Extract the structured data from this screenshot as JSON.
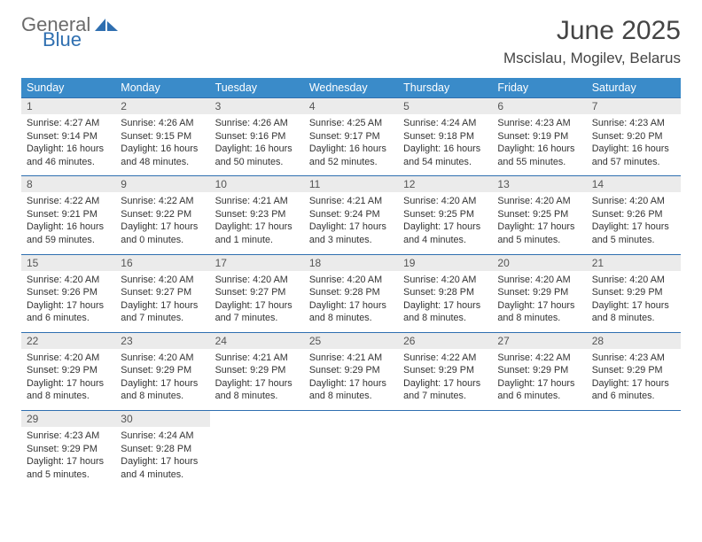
{
  "brand": {
    "word1": "General",
    "word2": "Blue",
    "color_gray": "#6b6b6b",
    "color_blue": "#2f6fb0"
  },
  "title": "June 2025",
  "location": "Mscislau, Mogilev, Belarus",
  "colors": {
    "header_bg": "#3a8bc9",
    "header_text": "#ffffff",
    "row_divider": "#2f6fb0",
    "daynum_bg": "#ebebeb",
    "body_text": "#333333"
  },
  "day_headers": [
    "Sunday",
    "Monday",
    "Tuesday",
    "Wednesday",
    "Thursday",
    "Friday",
    "Saturday"
  ],
  "weeks": [
    [
      {
        "n": "1",
        "sr": "Sunrise: 4:27 AM",
        "ss": "Sunset: 9:14 PM",
        "d1": "Daylight: 16 hours",
        "d2": "and 46 minutes."
      },
      {
        "n": "2",
        "sr": "Sunrise: 4:26 AM",
        "ss": "Sunset: 9:15 PM",
        "d1": "Daylight: 16 hours",
        "d2": "and 48 minutes."
      },
      {
        "n": "3",
        "sr": "Sunrise: 4:26 AM",
        "ss": "Sunset: 9:16 PM",
        "d1": "Daylight: 16 hours",
        "d2": "and 50 minutes."
      },
      {
        "n": "4",
        "sr": "Sunrise: 4:25 AM",
        "ss": "Sunset: 9:17 PM",
        "d1": "Daylight: 16 hours",
        "d2": "and 52 minutes."
      },
      {
        "n": "5",
        "sr": "Sunrise: 4:24 AM",
        "ss": "Sunset: 9:18 PM",
        "d1": "Daylight: 16 hours",
        "d2": "and 54 minutes."
      },
      {
        "n": "6",
        "sr": "Sunrise: 4:23 AM",
        "ss": "Sunset: 9:19 PM",
        "d1": "Daylight: 16 hours",
        "d2": "and 55 minutes."
      },
      {
        "n": "7",
        "sr": "Sunrise: 4:23 AM",
        "ss": "Sunset: 9:20 PM",
        "d1": "Daylight: 16 hours",
        "d2": "and 57 minutes."
      }
    ],
    [
      {
        "n": "8",
        "sr": "Sunrise: 4:22 AM",
        "ss": "Sunset: 9:21 PM",
        "d1": "Daylight: 16 hours",
        "d2": "and 59 minutes."
      },
      {
        "n": "9",
        "sr": "Sunrise: 4:22 AM",
        "ss": "Sunset: 9:22 PM",
        "d1": "Daylight: 17 hours",
        "d2": "and 0 minutes."
      },
      {
        "n": "10",
        "sr": "Sunrise: 4:21 AM",
        "ss": "Sunset: 9:23 PM",
        "d1": "Daylight: 17 hours",
        "d2": "and 1 minute."
      },
      {
        "n": "11",
        "sr": "Sunrise: 4:21 AM",
        "ss": "Sunset: 9:24 PM",
        "d1": "Daylight: 17 hours",
        "d2": "and 3 minutes."
      },
      {
        "n": "12",
        "sr": "Sunrise: 4:20 AM",
        "ss": "Sunset: 9:25 PM",
        "d1": "Daylight: 17 hours",
        "d2": "and 4 minutes."
      },
      {
        "n": "13",
        "sr": "Sunrise: 4:20 AM",
        "ss": "Sunset: 9:25 PM",
        "d1": "Daylight: 17 hours",
        "d2": "and 5 minutes."
      },
      {
        "n": "14",
        "sr": "Sunrise: 4:20 AM",
        "ss": "Sunset: 9:26 PM",
        "d1": "Daylight: 17 hours",
        "d2": "and 5 minutes."
      }
    ],
    [
      {
        "n": "15",
        "sr": "Sunrise: 4:20 AM",
        "ss": "Sunset: 9:26 PM",
        "d1": "Daylight: 17 hours",
        "d2": "and 6 minutes."
      },
      {
        "n": "16",
        "sr": "Sunrise: 4:20 AM",
        "ss": "Sunset: 9:27 PM",
        "d1": "Daylight: 17 hours",
        "d2": "and 7 minutes."
      },
      {
        "n": "17",
        "sr": "Sunrise: 4:20 AM",
        "ss": "Sunset: 9:27 PM",
        "d1": "Daylight: 17 hours",
        "d2": "and 7 minutes."
      },
      {
        "n": "18",
        "sr": "Sunrise: 4:20 AM",
        "ss": "Sunset: 9:28 PM",
        "d1": "Daylight: 17 hours",
        "d2": "and 8 minutes."
      },
      {
        "n": "19",
        "sr": "Sunrise: 4:20 AM",
        "ss": "Sunset: 9:28 PM",
        "d1": "Daylight: 17 hours",
        "d2": "and 8 minutes."
      },
      {
        "n": "20",
        "sr": "Sunrise: 4:20 AM",
        "ss": "Sunset: 9:29 PM",
        "d1": "Daylight: 17 hours",
        "d2": "and 8 minutes."
      },
      {
        "n": "21",
        "sr": "Sunrise: 4:20 AM",
        "ss": "Sunset: 9:29 PM",
        "d1": "Daylight: 17 hours",
        "d2": "and 8 minutes."
      }
    ],
    [
      {
        "n": "22",
        "sr": "Sunrise: 4:20 AM",
        "ss": "Sunset: 9:29 PM",
        "d1": "Daylight: 17 hours",
        "d2": "and 8 minutes."
      },
      {
        "n": "23",
        "sr": "Sunrise: 4:20 AM",
        "ss": "Sunset: 9:29 PM",
        "d1": "Daylight: 17 hours",
        "d2": "and 8 minutes."
      },
      {
        "n": "24",
        "sr": "Sunrise: 4:21 AM",
        "ss": "Sunset: 9:29 PM",
        "d1": "Daylight: 17 hours",
        "d2": "and 8 minutes."
      },
      {
        "n": "25",
        "sr": "Sunrise: 4:21 AM",
        "ss": "Sunset: 9:29 PM",
        "d1": "Daylight: 17 hours",
        "d2": "and 8 minutes."
      },
      {
        "n": "26",
        "sr": "Sunrise: 4:22 AM",
        "ss": "Sunset: 9:29 PM",
        "d1": "Daylight: 17 hours",
        "d2": "and 7 minutes."
      },
      {
        "n": "27",
        "sr": "Sunrise: 4:22 AM",
        "ss": "Sunset: 9:29 PM",
        "d1": "Daylight: 17 hours",
        "d2": "and 6 minutes."
      },
      {
        "n": "28",
        "sr": "Sunrise: 4:23 AM",
        "ss": "Sunset: 9:29 PM",
        "d1": "Daylight: 17 hours",
        "d2": "and 6 minutes."
      }
    ],
    [
      {
        "n": "29",
        "sr": "Sunrise: 4:23 AM",
        "ss": "Sunset: 9:29 PM",
        "d1": "Daylight: 17 hours",
        "d2": "and 5 minutes."
      },
      {
        "n": "30",
        "sr": "Sunrise: 4:24 AM",
        "ss": "Sunset: 9:28 PM",
        "d1": "Daylight: 17 hours",
        "d2": "and 4 minutes."
      },
      null,
      null,
      null,
      null,
      null
    ]
  ]
}
